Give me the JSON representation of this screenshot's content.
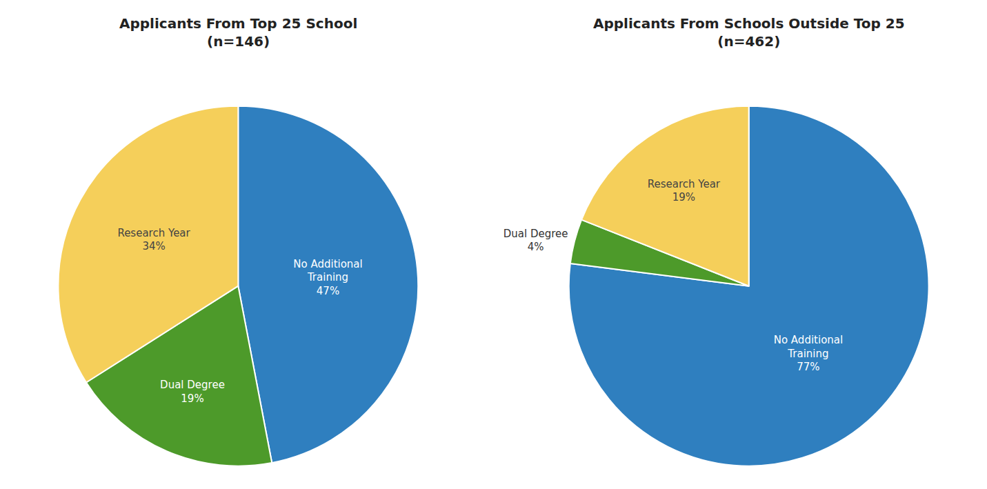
{
  "chart_data": [
    {
      "type": "pie",
      "title": "Applicants From Top 25 School\n(n=146)",
      "categories": [
        "No Additional\nTraining",
        "Dual Degree",
        "Research Year"
      ],
      "values": [
        47,
        19,
        34
      ],
      "value_labels": [
        "47%",
        "19%",
        "34%"
      ],
      "colors": [
        "#2F7FBF",
        "#4D9A2A",
        "#F5CF5A"
      ],
      "data_labels": true
    },
    {
      "type": "pie",
      "title": "Applicants From Schools Outside Top 25\n(n=462)",
      "categories": [
        "No Additional\nTraining",
        "Dual Degree",
        "Research Year"
      ],
      "values": [
        77,
        4,
        19
      ],
      "value_labels": [
        "77%",
        "4%",
        "19%"
      ],
      "colors": [
        "#2F7FBF",
        "#4D9A2A",
        "#F5CF5A"
      ],
      "data_labels": true
    }
  ]
}
